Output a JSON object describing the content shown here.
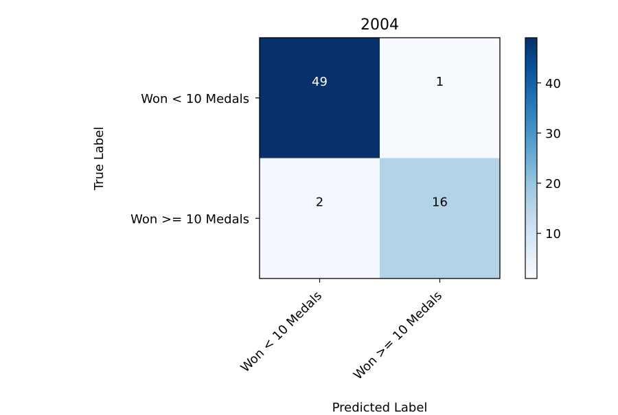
{
  "chart_data": {
    "type": "heatmap",
    "title": "2004",
    "xlabel": "Predicted Label",
    "ylabel": "True Label",
    "x_categories": [
      "Won < 10 Medals",
      "Won >= 10 Medals"
    ],
    "y_categories": [
      "Won < 10 Medals",
      "Won >= 10 Medals"
    ],
    "matrix": [
      [
        49,
        1
      ],
      [
        2,
        16
      ]
    ],
    "colormap": "Blues",
    "colorbar": {
      "range": [
        1,
        49
      ],
      "ticks": [
        10,
        20,
        30,
        40
      ],
      "tick_labels": [
        "10",
        "20",
        "30",
        "40"
      ]
    },
    "text_colors": {
      "dark_cell": "#ffffff",
      "light_cell": "#000000"
    }
  }
}
